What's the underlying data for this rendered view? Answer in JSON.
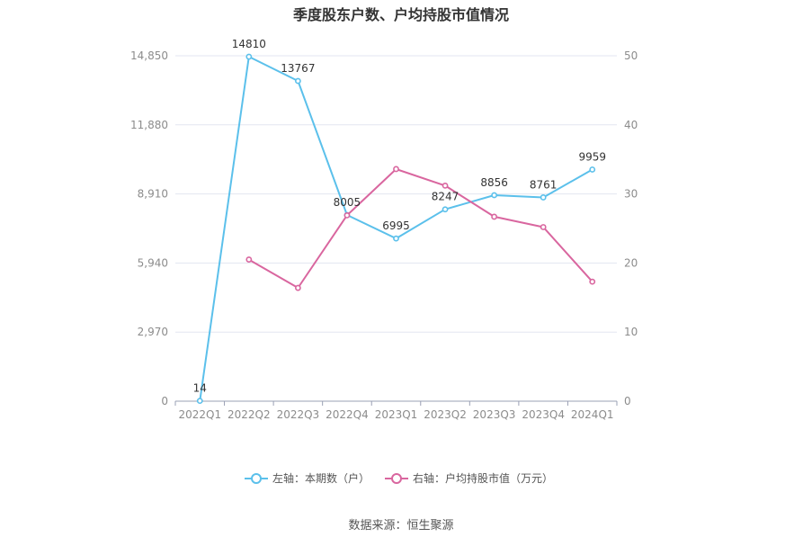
{
  "chart_data": {
    "type": "line",
    "title": "季度股东户数、户均持股市值情况",
    "categories": [
      "2022Q1",
      "2022Q2",
      "2022Q3",
      "2022Q4",
      "2023Q1",
      "2023Q2",
      "2023Q3",
      "2023Q4",
      "2024Q1"
    ],
    "y_left": {
      "ticks": [
        0,
        2970,
        5940,
        8910,
        11880,
        14850
      ],
      "tick_labels": [
        "0",
        "2,970",
        "5,940",
        "8,910",
        "11,880",
        "14,850"
      ],
      "ylim": [
        0,
        14850
      ]
    },
    "y_right": {
      "ticks": [
        0,
        10,
        20,
        30,
        40,
        50
      ],
      "tick_labels": [
        "0",
        "10",
        "20",
        "30",
        "40",
        "50"
      ],
      "ylim": [
        0,
        50
      ]
    },
    "grid": true,
    "legend_position": "bottom",
    "series": [
      {
        "name": "左轴：本期数（户）",
        "axis": "left",
        "color": "#5bc0eb",
        "values": [
          14,
          14810,
          13767,
          8005,
          6995,
          8247,
          8856,
          8761,
          9959
        ],
        "data_labels": [
          "14",
          "14810",
          "13767",
          "8005",
          "6995",
          "8247",
          "8856",
          "8761",
          "9959"
        ]
      },
      {
        "name": "右轴：户均持股市值（万元）",
        "axis": "right",
        "color": "#d9669f",
        "values": [
          null,
          20.5,
          16.4,
          26.9,
          33.6,
          31.2,
          26.7,
          25.2,
          17.3
        ]
      }
    ]
  },
  "source_text": "数据来源：恒生聚源"
}
